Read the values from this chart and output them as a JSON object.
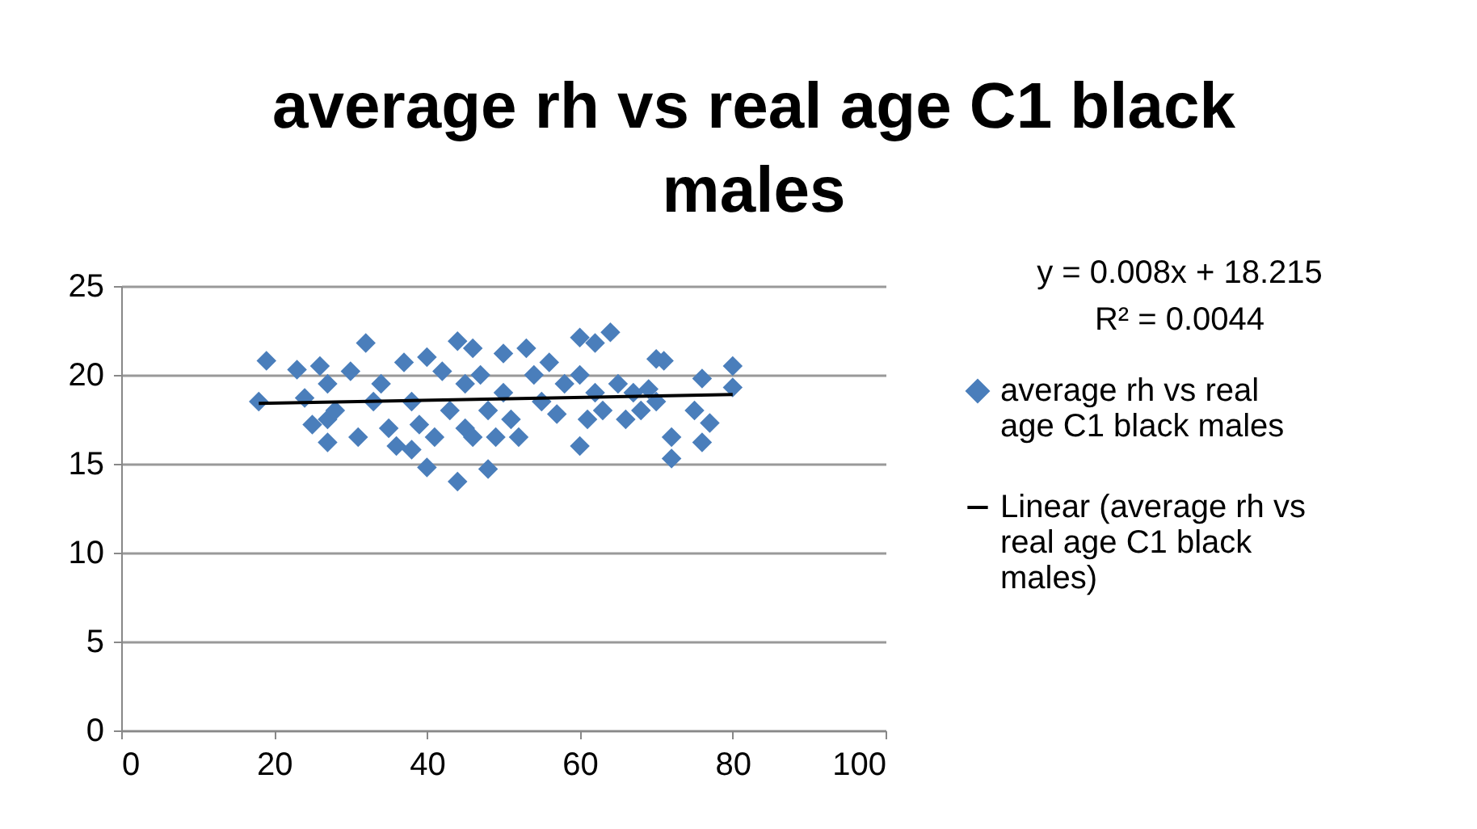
{
  "chart_data": {
    "type": "scatter",
    "title": "average rh vs real age C1 black males",
    "annotations": [
      "y = 0.008x + 18.215",
      "R² = 0.0044"
    ],
    "xlim": [
      0,
      100
    ],
    "xticks": [
      0,
      20,
      40,
      60,
      80,
      100
    ],
    "ylim": [
      0,
      25
    ],
    "yticks": [
      0,
      5,
      10,
      15,
      20,
      25
    ],
    "grid": "y",
    "legend": "right",
    "marker": "diamond",
    "series": [
      {
        "name": "average rh vs real age C1 black males",
        "color": "#4a7ebb",
        "x": [
          18,
          19,
          23,
          24,
          25,
          26,
          27,
          27,
          27,
          28,
          30,
          31,
          32,
          33,
          34,
          35,
          36,
          37,
          38,
          38,
          39,
          40,
          40,
          41,
          42,
          43,
          44,
          44,
          45,
          45,
          46,
          46,
          47,
          48,
          48,
          49,
          50,
          50,
          51,
          52,
          53,
          54,
          55,
          56,
          57,
          58,
          60,
          60,
          60,
          61,
          62,
          62,
          63,
          64,
          65,
          66,
          67,
          68,
          69,
          70,
          70,
          71,
          72,
          72,
          75,
          76,
          76,
          77,
          80,
          80
        ],
        "values": [
          18.5,
          20.8,
          20.3,
          18.7,
          17.2,
          20.5,
          19.5,
          17.5,
          16.2,
          18.0,
          20.2,
          16.5,
          21.8,
          18.5,
          19.5,
          17.0,
          16.0,
          20.7,
          18.5,
          15.8,
          17.2,
          21.0,
          14.8,
          16.5,
          20.2,
          18.0,
          21.9,
          14.0,
          17.0,
          19.5,
          21.5,
          16.5,
          20.0,
          14.7,
          18.0,
          16.5,
          21.2,
          19.0,
          17.5,
          16.5,
          21.5,
          20.0,
          18.5,
          20.7,
          17.8,
          19.5,
          22.1,
          20.0,
          16.0,
          17.5,
          21.8,
          19.0,
          18.0,
          22.4,
          19.5,
          17.5,
          19.0,
          18.0,
          19.2,
          20.9,
          18.5,
          20.8,
          16.5,
          15.3,
          18.0,
          19.8,
          16.2,
          17.3,
          20.5,
          19.3
        ]
      },
      {
        "name": "Linear (average rh vs real age C1 black males)",
        "color": "#000000",
        "type": "line",
        "marker": "none",
        "line_style": "solid",
        "x": [
          18,
          80
        ],
        "values": [
          18.4,
          18.9
        ]
      }
    ]
  }
}
